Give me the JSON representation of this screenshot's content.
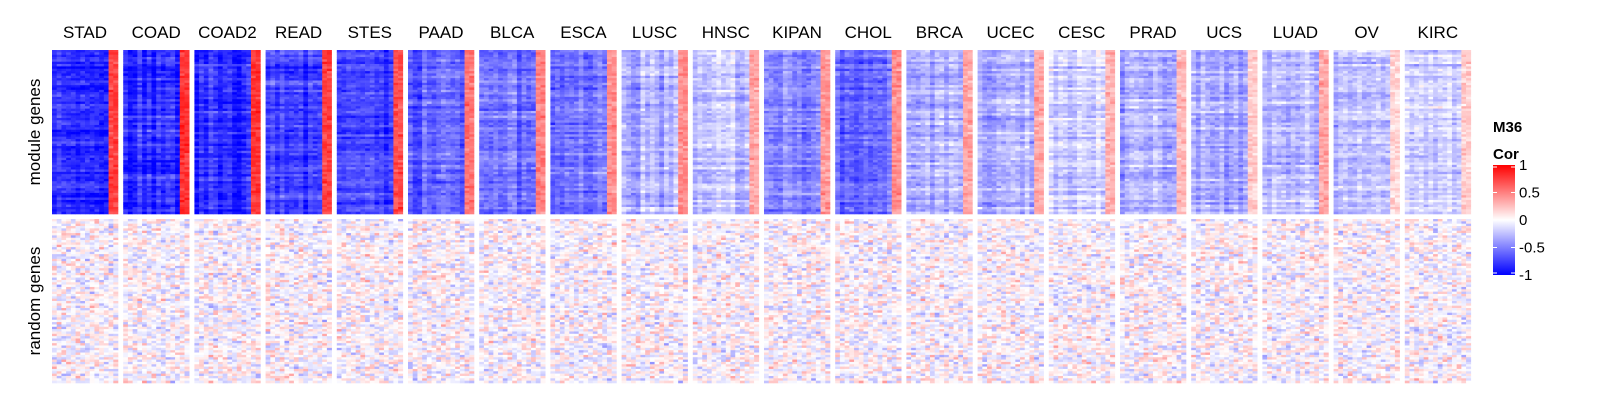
{
  "chart_data": {
    "type": "heatmap",
    "title": "",
    "cancer_types": [
      "STAD",
      "COAD",
      "COAD2",
      "READ",
      "STES",
      "PAAD",
      "BLCA",
      "ESCA",
      "LUSC",
      "HNSC",
      "KIPAN",
      "CHOL",
      "BRCA",
      "UCEC",
      "CESC",
      "PRAD",
      "UCS",
      "LUAD",
      "OV",
      "KIRC"
    ],
    "row_groups": [
      {
        "label": "module genes",
        "mean_cor_main": [
          -0.85,
          -0.85,
          -0.82,
          -0.72,
          -0.72,
          -0.62,
          -0.58,
          -0.55,
          -0.3,
          -0.25,
          -0.45,
          -0.55,
          -0.3,
          -0.3,
          -0.18,
          -0.3,
          -0.35,
          -0.25,
          -0.22,
          -0.15
        ],
        "mean_cor_last_columns": [
          0.75,
          0.8,
          0.8,
          0.75,
          0.7,
          0.55,
          0.5,
          0.45,
          0.45,
          0.35,
          0.4,
          0.45,
          0.35,
          0.35,
          0.3,
          0.3,
          0.2,
          0.35,
          0.15,
          0.2
        ]
      },
      {
        "label": "random genes",
        "mean_cor_main": [
          0,
          0,
          0,
          0,
          0,
          0,
          0,
          0,
          0,
          0,
          0,
          0,
          0,
          0,
          0,
          0,
          0,
          0,
          0,
          0
        ]
      }
    ],
    "legend": {
      "title": "M36\nCor",
      "title_lines": [
        "M36",
        "Cor"
      ],
      "ticks": [
        1,
        0.5,
        0,
        -0.5,
        -1
      ],
      "tick_labels": [
        "1",
        "0.5",
        "0",
        "-0.5",
        "-1"
      ],
      "range": [
        -1,
        1
      ],
      "colors": {
        "low": "#0000ff",
        "mid": "#ffffff",
        "high": "#ff0000"
      },
      "placement": "right"
    }
  }
}
